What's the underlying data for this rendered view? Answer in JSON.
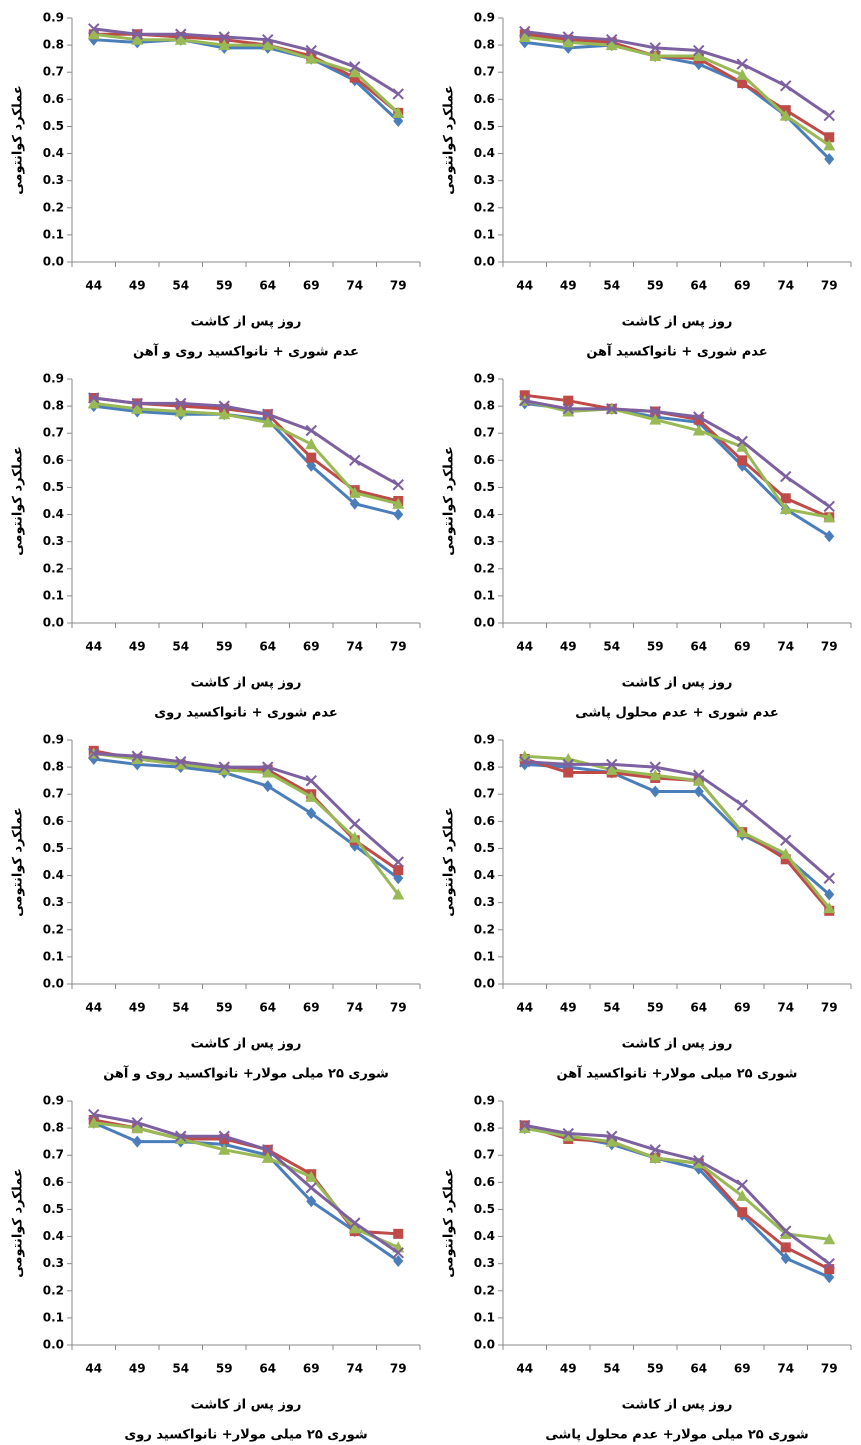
{
  "chart_data": [
    {
      "type": "line",
      "title": "عدم شوری + نانواکسید روی و آهن",
      "x_label": "روز پس از کاشت",
      "y_label": "عملکرد کوانتومی",
      "categories": [
        44,
        49,
        54,
        59,
        64,
        69,
        74,
        79
      ],
      "ylim": [
        0,
        0.9
      ],
      "yticks": [
        {
          "value": 0,
          "label": "0.0"
        },
        0.1,
        0.2,
        0.3,
        0.4,
        0.5,
        0.6,
        0.7,
        0.8,
        0.9
      ],
      "series": [
        {
          "color": "#4a7ebb",
          "marker": "diamond",
          "values": [
            0.82,
            0.81,
            0.82,
            0.79,
            0.79,
            0.75,
            0.67,
            0.52
          ]
        },
        {
          "color": "#be4b48",
          "marker": "square",
          "values": [
            0.84,
            0.84,
            0.83,
            0.82,
            0.8,
            0.76,
            0.68,
            0.55
          ]
        },
        {
          "color": "#98b954",
          "marker": "triangle",
          "values": [
            0.84,
            0.82,
            0.82,
            0.8,
            0.8,
            0.75,
            0.7,
            0.55
          ]
        },
        {
          "color": "#7d60a0",
          "marker": "x",
          "values": [
            0.86,
            0.84,
            0.84,
            0.83,
            0.82,
            0.78,
            0.72,
            0.62
          ]
        }
      ]
    },
    {
      "type": "line",
      "title": "عدم شوری + نانواکسید آهن",
      "x_label": "روز پس از کاشت",
      "y_label": "عملکرد کوانتومی",
      "categories": [
        44,
        49,
        54,
        59,
        64,
        69,
        74,
        79
      ],
      "ylim": [
        0,
        0.9
      ],
      "yticks": [
        {
          "value": 0,
          "label": "0.0"
        },
        0.1,
        0.2,
        0.3,
        0.4,
        0.5,
        0.6,
        0.7,
        0.8,
        0.9
      ],
      "series": [
        {
          "color": "#4a7ebb",
          "marker": "diamond",
          "values": [
            0.81,
            0.79,
            0.8,
            0.76,
            0.73,
            0.66,
            0.54,
            0.38
          ]
        },
        {
          "color": "#be4b48",
          "marker": "square",
          "values": [
            0.84,
            0.82,
            0.81,
            0.76,
            0.75,
            0.66,
            0.56,
            0.46
          ]
        },
        {
          "color": "#98b954",
          "marker": "triangle",
          "values": [
            0.83,
            0.81,
            0.8,
            0.76,
            0.76,
            0.69,
            0.54,
            0.43
          ]
        },
        {
          "color": "#7d60a0",
          "marker": "x",
          "values": [
            0.85,
            0.83,
            0.82,
            0.79,
            0.78,
            0.73,
            0.65,
            0.54
          ]
        }
      ]
    },
    {
      "type": "line",
      "title": "عدم شوری + نانواکسید روی",
      "x_label": "روز پس از کاشت",
      "y_label": "عملکرد کوانتومی",
      "categories": [
        44,
        49,
        54,
        59,
        64,
        69,
        74,
        79
      ],
      "ylim": [
        0,
        0.9
      ],
      "yticks": [
        {
          "value": 0,
          "label": "0.0"
        },
        0.1,
        0.2,
        0.3,
        0.4,
        0.5,
        0.6,
        0.7,
        0.8,
        0.9
      ],
      "series": [
        {
          "color": "#4a7ebb",
          "marker": "diamond",
          "values": [
            0.8,
            0.78,
            0.77,
            0.77,
            0.75,
            0.58,
            0.44,
            0.4
          ]
        },
        {
          "color": "#be4b48",
          "marker": "square",
          "values": [
            0.83,
            0.81,
            0.8,
            0.79,
            0.77,
            0.61,
            0.49,
            0.45
          ]
        },
        {
          "color": "#98b954",
          "marker": "triangle",
          "values": [
            0.81,
            0.79,
            0.78,
            0.77,
            0.74,
            0.66,
            0.48,
            0.44
          ]
        },
        {
          "color": "#7d60a0",
          "marker": "x",
          "values": [
            0.83,
            0.81,
            0.81,
            0.8,
            0.77,
            0.71,
            0.6,
            0.51
          ]
        }
      ]
    },
    {
      "type": "line",
      "title": "عدم شوری + عدم محلول پاشی",
      "x_label": "روز پس از کاشت",
      "y_label": "عملکرد کوانتومی",
      "categories": [
        44,
        49,
        54,
        59,
        64,
        69,
        74,
        79
      ],
      "ylim": [
        0,
        0.9
      ],
      "yticks": [
        {
          "value": 0,
          "label": "0.0"
        },
        0.1,
        0.2,
        0.3,
        0.4,
        0.5,
        0.6,
        0.7,
        0.8,
        0.9
      ],
      "series": [
        {
          "color": "#4a7ebb",
          "marker": "diamond",
          "values": [
            0.81,
            0.79,
            0.79,
            0.76,
            0.74,
            0.58,
            0.42,
            0.32
          ]
        },
        {
          "color": "#be4b48",
          "marker": "square",
          "values": [
            0.84,
            0.82,
            0.79,
            0.78,
            0.75,
            0.6,
            0.46,
            0.39
          ]
        },
        {
          "color": "#98b954",
          "marker": "triangle",
          "values": [
            0.82,
            0.78,
            0.79,
            0.75,
            0.71,
            0.65,
            0.42,
            0.39
          ]
        },
        {
          "color": "#7d60a0",
          "marker": "x",
          "values": [
            0.82,
            0.79,
            0.79,
            0.78,
            0.76,
            0.67,
            0.54,
            0.43
          ]
        }
      ]
    },
    {
      "type": "line",
      "title": "شوری ۲۵ میلی مولار+ نانواکسید روی و آهن",
      "x_label": "روز پس از کاشت",
      "y_label": "عملکرد کوانتومی",
      "categories": [
        44,
        49,
        54,
        59,
        64,
        69,
        74,
        79
      ],
      "ylim": [
        0,
        0.9
      ],
      "yticks": [
        {
          "value": 0,
          "label": "0.0"
        },
        0.1,
        0.2,
        0.3,
        0.4,
        0.5,
        0.6,
        0.7,
        0.8,
        0.9
      ],
      "series": [
        {
          "color": "#4a7ebb",
          "marker": "diamond",
          "values": [
            0.83,
            0.81,
            0.8,
            0.78,
            0.73,
            0.63,
            0.51,
            0.39
          ]
        },
        {
          "color": "#be4b48",
          "marker": "square",
          "values": [
            0.86,
            0.83,
            0.81,
            0.79,
            0.79,
            0.7,
            0.53,
            0.42
          ]
        },
        {
          "color": "#98b954",
          "marker": "triangle",
          "values": [
            0.85,
            0.83,
            0.81,
            0.79,
            0.78,
            0.69,
            0.54,
            0.33
          ]
        },
        {
          "color": "#7d60a0",
          "marker": "x",
          "values": [
            0.85,
            0.84,
            0.82,
            0.8,
            0.8,
            0.75,
            0.59,
            0.45
          ]
        }
      ]
    },
    {
      "type": "line",
      "title": "شوری ۲۵ میلی مولار+ نانواکسید آهن",
      "x_label": "روز پس از کاشت",
      "y_label": "عملکرد کوانتومی",
      "categories": [
        44,
        49,
        54,
        59,
        64,
        69,
        74,
        79
      ],
      "ylim": [
        0,
        0.9
      ],
      "yticks": [
        {
          "value": 0,
          "label": "0.0"
        },
        0.1,
        0.2,
        0.3,
        0.4,
        0.5,
        0.6,
        0.7,
        0.8,
        0.9
      ],
      "series": [
        {
          "color": "#4a7ebb",
          "marker": "diamond",
          "values": [
            0.81,
            0.8,
            0.78,
            0.71,
            0.71,
            0.55,
            0.47,
            0.33
          ]
        },
        {
          "color": "#be4b48",
          "marker": "square",
          "values": [
            0.83,
            0.78,
            0.78,
            0.76,
            0.75,
            0.56,
            0.46,
            0.27
          ]
        },
        {
          "color": "#98b954",
          "marker": "triangle",
          "values": [
            0.84,
            0.83,
            0.79,
            0.77,
            0.75,
            0.56,
            0.48,
            0.28
          ]
        },
        {
          "color": "#7d60a0",
          "marker": "x",
          "values": [
            0.82,
            0.81,
            0.81,
            0.8,
            0.77,
            0.66,
            0.53,
            0.39
          ]
        }
      ]
    },
    {
      "type": "line",
      "title": "شوری ۲۵ میلی مولار+ نانواکسید روی",
      "x_label": "روز پس از کاشت",
      "y_label": "عملکرد کوانتومی",
      "categories": [
        44,
        49,
        54,
        59,
        64,
        69,
        74,
        79
      ],
      "ylim": [
        0,
        0.9
      ],
      "yticks": [
        {
          "value": 0,
          "label": "0.0"
        },
        0.1,
        0.2,
        0.3,
        0.4,
        0.5,
        0.6,
        0.7,
        0.8,
        0.9
      ],
      "series": [
        {
          "color": "#4a7ebb",
          "marker": "diamond",
          "values": [
            0.82,
            0.75,
            0.75,
            0.74,
            0.7,
            0.53,
            0.42,
            0.31
          ]
        },
        {
          "color": "#be4b48",
          "marker": "square",
          "values": [
            0.83,
            0.8,
            0.76,
            0.76,
            0.72,
            0.63,
            0.42,
            0.41
          ]
        },
        {
          "color": "#98b954",
          "marker": "triangle",
          "values": [
            0.82,
            0.8,
            0.76,
            0.72,
            0.69,
            0.62,
            0.43,
            0.36
          ]
        },
        {
          "color": "#7d60a0",
          "marker": "x",
          "values": [
            0.85,
            0.82,
            0.77,
            0.77,
            0.72,
            0.58,
            0.45,
            0.34
          ]
        }
      ]
    },
    {
      "type": "line",
      "title": "شوری ۲۵ میلی مولار+ عدم محلول پاشی",
      "x_label": "روز پس از کاشت",
      "y_label": "عملکرد کوانتومی",
      "categories": [
        44,
        49,
        54,
        59,
        64,
        69,
        74,
        79
      ],
      "ylim": [
        0,
        0.9
      ],
      "yticks": [
        {
          "value": 0,
          "label": "0.0"
        },
        0.1,
        0.2,
        0.3,
        0.4,
        0.5,
        0.6,
        0.7,
        0.8,
        0.9
      ],
      "series": [
        {
          "color": "#4a7ebb",
          "marker": "diamond",
          "values": [
            0.8,
            0.77,
            0.74,
            0.69,
            0.65,
            0.48,
            0.32,
            0.25
          ]
        },
        {
          "color": "#be4b48",
          "marker": "square",
          "values": [
            0.81,
            0.76,
            0.75,
            0.69,
            0.67,
            0.49,
            0.36,
            0.28
          ]
        },
        {
          "color": "#98b954",
          "marker": "triangle",
          "values": [
            0.8,
            0.77,
            0.75,
            0.69,
            0.67,
            0.55,
            0.41,
            0.39
          ]
        },
        {
          "color": "#7d60a0",
          "marker": "x",
          "values": [
            0.81,
            0.78,
            0.77,
            0.72,
            0.68,
            0.59,
            0.42,
            0.3
          ]
        }
      ]
    }
  ]
}
